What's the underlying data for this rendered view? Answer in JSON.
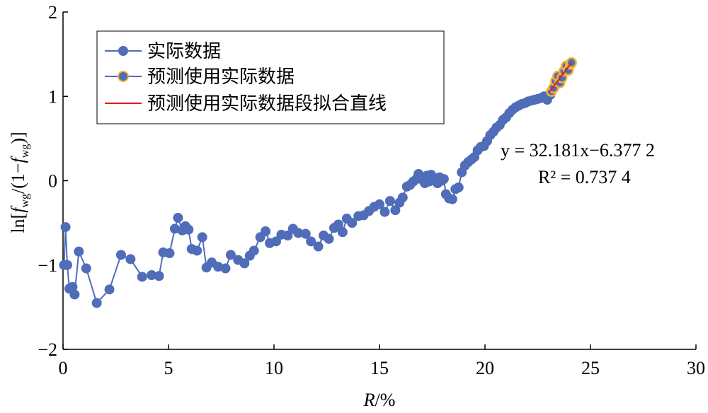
{
  "chart_data": {
    "type": "scatter",
    "xlabel": "R/%",
    "ylabel": "ln[f_wg/(1−f_wg)]",
    "xlim": [
      0,
      30
    ],
    "ylim": [
      -2,
      2
    ],
    "x_ticks": [
      "0",
      "5",
      "10",
      "15",
      "20",
      "25",
      "30"
    ],
    "y_ticks": [
      "2",
      "1",
      "0",
      "−1",
      "−2"
    ],
    "grid": false,
    "legend_position": "top-left",
    "colors": {
      "actual": "#4F6DB8",
      "predict_edge": "#F2B234",
      "fit_line": "#E8161A"
    },
    "legend": [
      {
        "key": "actual",
        "label": "实际数据"
      },
      {
        "key": "predict",
        "label": "预测使用实际数据"
      },
      {
        "key": "fit",
        "label": "预测使用实际数据段拟合直线"
      }
    ],
    "annotation": {
      "equation": "y = 32.181x−6.377 2",
      "r2": "R² = 0.737 4"
    },
    "series": [
      {
        "name": "实际数据",
        "style": "line-marker",
        "x": [
          0.05,
          0.12,
          0.2,
          0.3,
          0.45,
          0.55,
          0.75,
          1.1,
          1.6,
          2.2,
          2.75,
          3.2,
          3.75,
          4.2,
          4.55,
          4.75,
          5.05,
          5.3,
          5.45,
          5.65,
          5.8,
          5.95,
          6.1,
          6.35,
          6.6,
          6.8,
          7.05,
          7.35,
          7.7,
          7.95,
          8.3,
          8.6,
          8.85,
          9.05,
          9.35,
          9.6,
          9.8,
          10.1,
          10.35,
          10.65,
          10.9,
          11.15,
          11.5,
          11.75,
          12.1,
          12.35,
          12.6,
          12.85,
          13.05,
          13.25,
          13.45,
          13.7,
          14.0,
          14.25,
          14.5,
          14.75,
          15.0,
          15.25,
          15.5,
          15.75,
          15.95,
          16.1,
          16.3,
          16.45,
          16.6,
          16.75,
          16.85,
          16.95,
          17.05,
          17.15,
          17.25,
          17.35,
          17.45,
          17.55,
          17.65,
          17.75,
          17.85,
          17.95,
          18.05,
          18.15,
          18.3,
          18.45,
          18.6,
          18.75,
          18.9,
          19.05,
          19.2,
          19.35,
          19.5,
          19.65,
          19.8,
          19.95,
          20.1,
          20.25,
          20.4,
          20.55,
          20.7,
          20.85,
          21.0,
          21.15,
          21.3,
          21.45,
          21.6,
          21.75,
          21.9,
          22.05,
          22.2,
          22.35,
          22.5,
          22.65,
          22.8,
          22.95,
          23.1
        ],
        "y": [
          -1.0,
          -0.55,
          -1.0,
          -1.28,
          -1.26,
          -1.35,
          -0.84,
          -1.04,
          -1.45,
          -1.29,
          -0.88,
          -0.93,
          -1.14,
          -1.12,
          -1.13,
          -0.85,
          -0.86,
          -0.57,
          -0.44,
          -0.59,
          -0.54,
          -0.58,
          -0.81,
          -0.83,
          -0.67,
          -1.03,
          -0.97,
          -1.02,
          -1.04,
          -0.88,
          -0.94,
          -0.98,
          -0.89,
          -0.83,
          -0.67,
          -0.6,
          -0.74,
          -0.72,
          -0.64,
          -0.65,
          -0.57,
          -0.62,
          -0.63,
          -0.72,
          -0.78,
          -0.65,
          -0.69,
          -0.56,
          -0.52,
          -0.61,
          -0.45,
          -0.5,
          -0.42,
          -0.41,
          -0.36,
          -0.31,
          -0.28,
          -0.37,
          -0.24,
          -0.35,
          -0.26,
          -0.2,
          -0.07,
          -0.05,
          -0.01,
          0.02,
          0.08,
          0.04,
          0.01,
          -0.03,
          0.06,
          -0.01,
          0.07,
          0.02,
          0.0,
          -0.03,
          0.04,
          0.0,
          0.02,
          -0.16,
          -0.21,
          -0.22,
          -0.1,
          -0.08,
          0.1,
          0.18,
          0.22,
          0.25,
          0.28,
          0.36,
          0.4,
          0.41,
          0.47,
          0.54,
          0.58,
          0.63,
          0.66,
          0.72,
          0.75,
          0.8,
          0.84,
          0.87,
          0.89,
          0.91,
          0.92,
          0.94,
          0.95,
          0.96,
          0.97,
          0.98,
          1.0,
          0.96,
          1.02
        ]
      },
      {
        "name": "预测使用实际数据",
        "style": "marker",
        "x": [
          23.15,
          23.25,
          23.35,
          23.45,
          23.55,
          23.65,
          23.75,
          23.85,
          23.95,
          24.05,
          24.1
        ],
        "y": [
          1.06,
          1.1,
          1.18,
          1.24,
          1.16,
          1.22,
          1.3,
          1.36,
          1.31,
          1.38,
          1.4
        ]
      }
    ],
    "fit_line": {
      "name": "预测使用实际数据段拟合直线",
      "x": [
        23.05,
        24.1
      ],
      "y": [
        1.05,
        1.4
      ]
    }
  }
}
